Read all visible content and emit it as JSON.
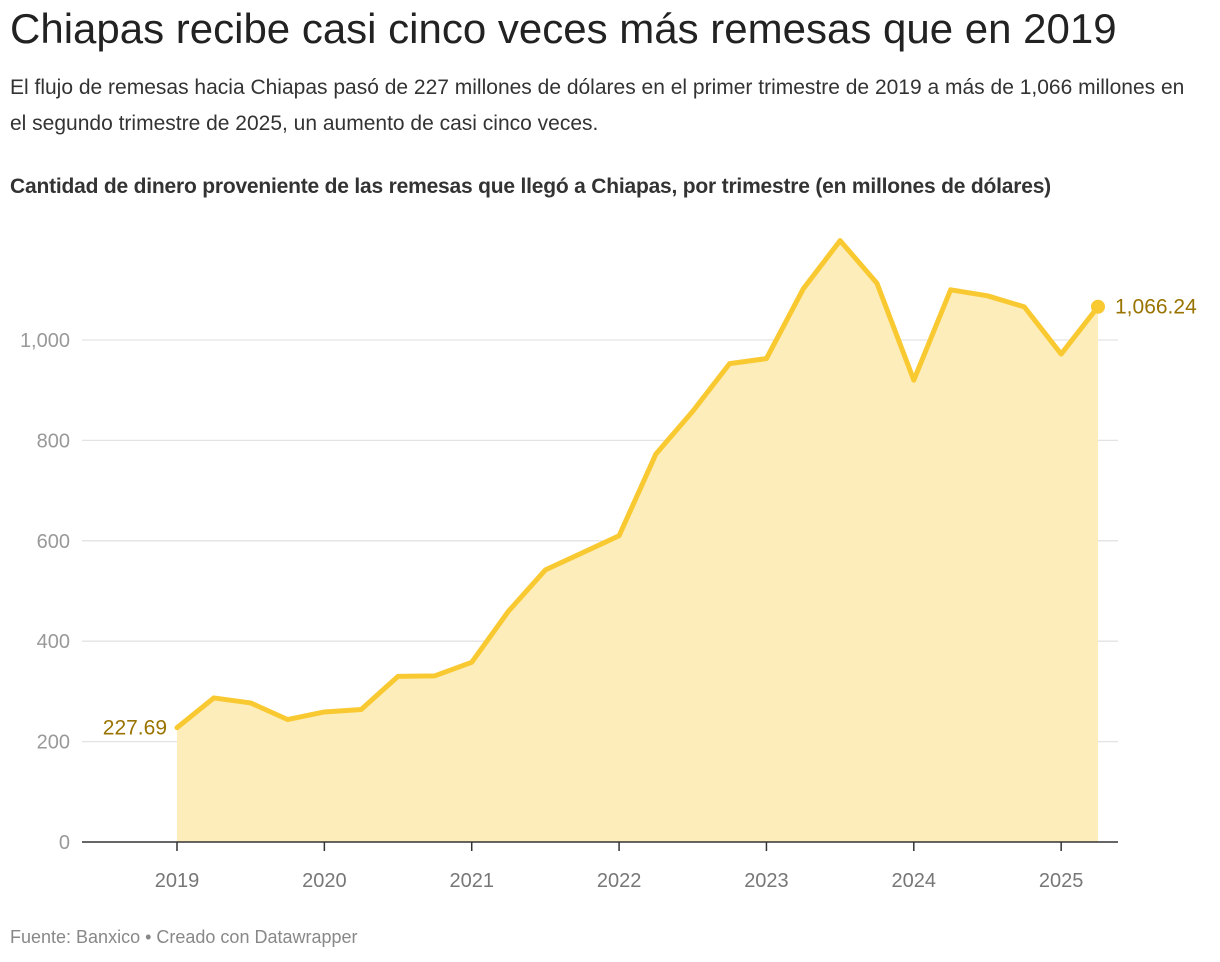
{
  "header": {
    "title": "Chiapas recibe casi cinco veces más remesas que en 2019",
    "subtitle": "El flujo de remesas hacia Chiapas pasó de 227 millones de dólares en el primer trimestre de 2019 a más de 1,066 millones en el segundo trimestre de 2025, un aumento de casi cinco veces.",
    "chart_heading": "Cantidad de dinero proveniente de las remesas que llegó a Chiapas, por trimestre (en millones de dólares)"
  },
  "footer": {
    "source": "Fuente: Banxico",
    "separator": " • ",
    "credit": "Creado con Datawrapper"
  },
  "colors": {
    "line": "#f9c932",
    "area": "#fcedbb",
    "label": "#9a7400",
    "grid": "#e3e3e3",
    "axis": "#333333",
    "tick": "#999999"
  },
  "chart_data": {
    "type": "area",
    "x": [
      "2019-Q1",
      "2019-Q2",
      "2019-Q3",
      "2019-Q4",
      "2020-Q1",
      "2020-Q2",
      "2020-Q3",
      "2020-Q4",
      "2021-Q1",
      "2021-Q2",
      "2021-Q3",
      "2021-Q4",
      "2022-Q1",
      "2022-Q2",
      "2022-Q3",
      "2022-Q4",
      "2023-Q1",
      "2023-Q2",
      "2023-Q3",
      "2023-Q4",
      "2024-Q1",
      "2024-Q2",
      "2024-Q3",
      "2024-Q4",
      "2025-Q1",
      "2025-Q2"
    ],
    "x_num": [
      2019.0,
      2019.25,
      2019.5,
      2019.75,
      2020.0,
      2020.25,
      2020.5,
      2020.75,
      2021.0,
      2021.25,
      2021.5,
      2021.75,
      2022.0,
      2022.25,
      2022.5,
      2022.75,
      2023.0,
      2023.25,
      2023.5,
      2023.75,
      2024.0,
      2024.25,
      2024.5,
      2024.75,
      2025.0,
      2025.25
    ],
    "series": [
      {
        "values": [
          227.69,
          287,
          277,
          244,
          259,
          264,
          330,
          331,
          358,
          460,
          542,
          576,
          610,
          773,
          858,
          953,
          963,
          1102,
          1198,
          1113,
          920,
          1100,
          1088,
          1066,
          972,
          1066.24
        ]
      }
    ],
    "xlim": [
      2018.4,
      2025.5
    ],
    "ylim": [
      0,
      1200
    ],
    "x_ticks": [
      {
        "value": 2019,
        "label": "2019"
      },
      {
        "value": 2020,
        "label": "2020"
      },
      {
        "value": 2021,
        "label": "2021"
      },
      {
        "value": 2022,
        "label": "2022"
      },
      {
        "value": 2023,
        "label": "2023"
      },
      {
        "value": 2024,
        "label": "2024"
      },
      {
        "value": 2025,
        "label": "2025"
      }
    ],
    "y_ticks": [
      {
        "value": 0,
        "label": "0"
      },
      {
        "value": 200,
        "label": "200"
      },
      {
        "value": 400,
        "label": "400"
      },
      {
        "value": 600,
        "label": "600"
      },
      {
        "value": 800,
        "label": "800"
      },
      {
        "value": 1000,
        "label": "1,000"
      }
    ],
    "annotations": {
      "start_label": "227.69",
      "end_label": "1,066.24"
    },
    "grid": true,
    "legend": "none"
  }
}
